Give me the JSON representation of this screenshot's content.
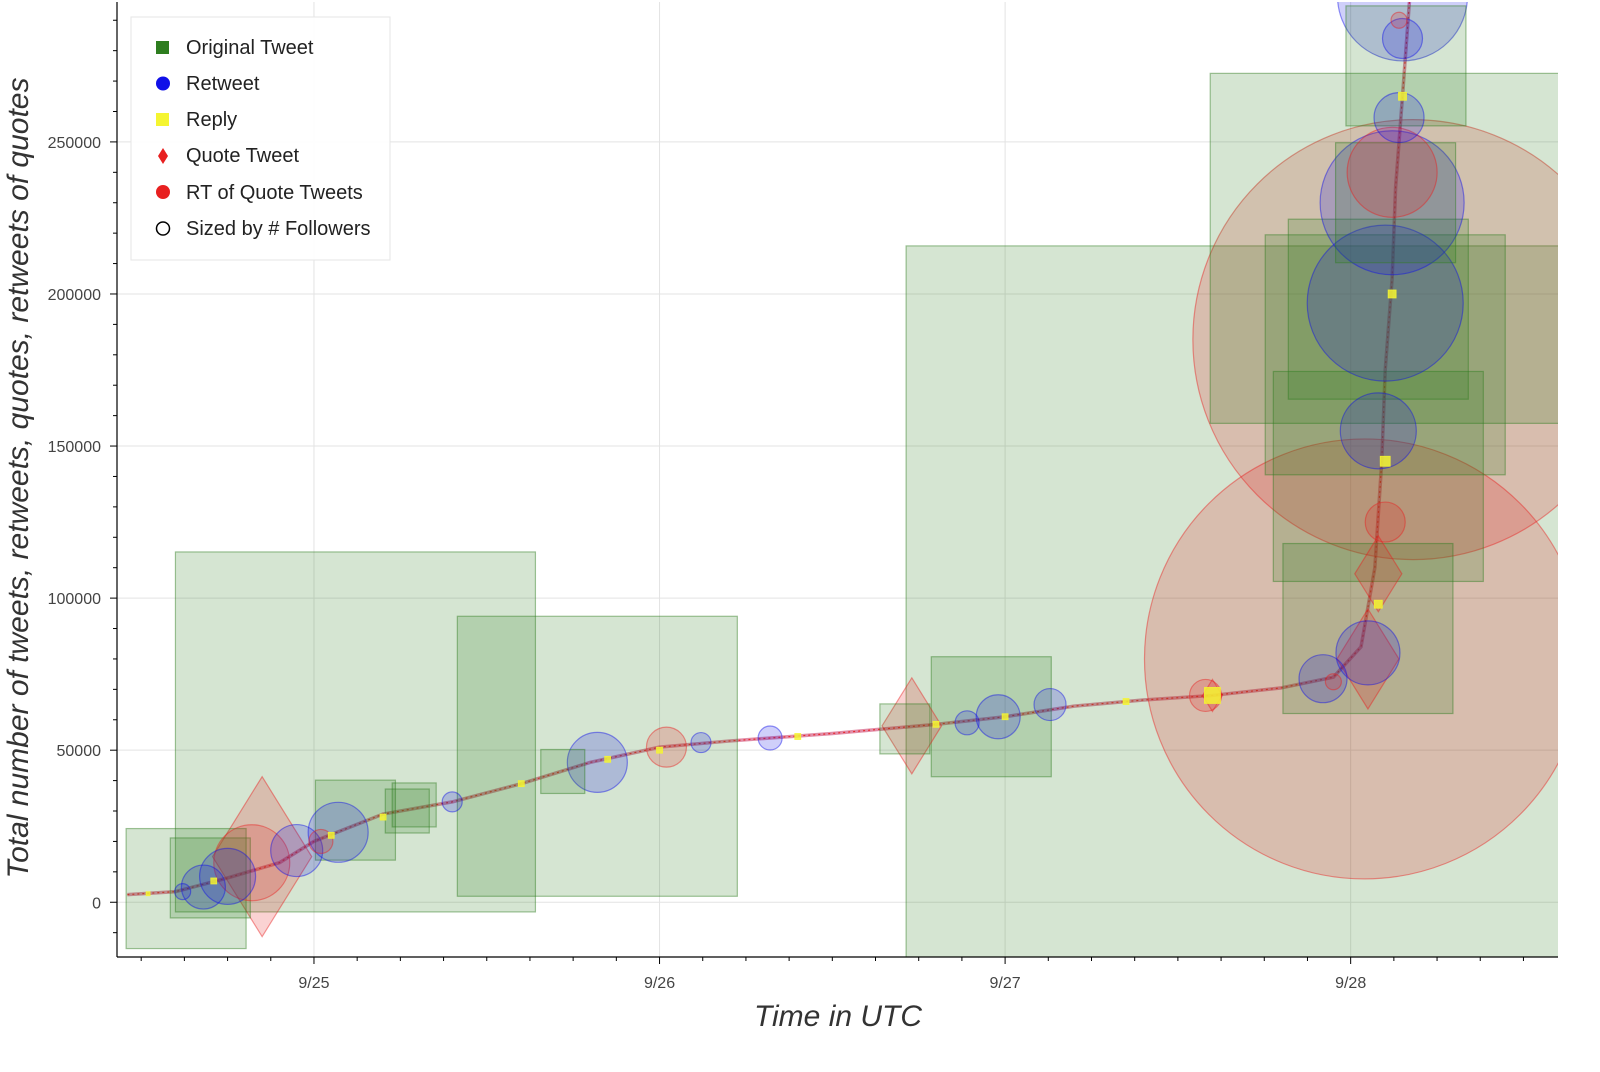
{
  "chart_data": {
    "type": "scatter",
    "title": "",
    "xlabel": "Time in UTC",
    "ylabel": "Total number of tweets, retweets, quotes, retweets of quotes",
    "x_unit": "days (9/25 00:00 UTC = 25)",
    "xlim": [
      24.43,
      28.6
    ],
    "ylim": [
      -18000,
      296000
    ],
    "x_ticks": [
      25,
      26,
      27,
      28
    ],
    "x_tick_labels": [
      "9/25",
      "9/26",
      "9/27",
      "9/28"
    ],
    "y_ticks": [
      0,
      50000,
      100000,
      150000,
      200000,
      250000
    ],
    "y_tick_labels": [
      "0",
      "50000",
      "100000",
      "150000",
      "200000",
      "250000"
    ],
    "grid": true,
    "legend_position": "top-left",
    "legend": [
      {
        "label": "Original Tweet",
        "shape": "square",
        "color": "#2e7d1f"
      },
      {
        "label": "Retweet",
        "shape": "circle",
        "color": "#1010e8"
      },
      {
        "label": "Reply",
        "shape": "square",
        "color": "#f5f531"
      },
      {
        "label": "Quote Tweet",
        "shape": "diamond",
        "color": "#e82020"
      },
      {
        "label": "RT of Quote Tweets",
        "shape": "circle",
        "color": "#e82020"
      },
      {
        "label": "Sized by # Followers",
        "shape": "circle-outline",
        "color": "#000000"
      }
    ],
    "trend": [
      [
        24.46,
        2500
      ],
      [
        24.6,
        3500
      ],
      [
        24.75,
        8000
      ],
      [
        24.9,
        13000
      ],
      [
        25.0,
        20000
      ],
      [
        25.2,
        29000
      ],
      [
        25.4,
        33000
      ],
      [
        25.6,
        39000
      ],
      [
        25.8,
        46000
      ],
      [
        26.0,
        51000
      ],
      [
        26.2,
        53000
      ],
      [
        26.5,
        55500
      ],
      [
        26.8,
        58500
      ],
      [
        27.0,
        61000
      ],
      [
        27.2,
        64500
      ],
      [
        27.4,
        66500
      ],
      [
        27.6,
        68000
      ],
      [
        27.8,
        70500
      ],
      [
        27.95,
        74000
      ],
      [
        28.03,
        84000
      ],
      [
        28.07,
        110000
      ],
      [
        28.09,
        145000
      ],
      [
        28.1,
        175000
      ],
      [
        28.12,
        205000
      ],
      [
        28.13,
        235000
      ],
      [
        28.15,
        265000
      ],
      [
        28.17,
        296000
      ]
    ],
    "series": [
      {
        "name": "Original Tweet",
        "marker": "square",
        "color": "#2e7d1f",
        "points": [
          [
            24.63,
            4500,
            60
          ],
          [
            24.7,
            8000,
            40
          ],
          [
            25.12,
            56000,
            180
          ],
          [
            25.12,
            27000,
            40
          ],
          [
            25.27,
            30000,
            22
          ],
          [
            25.29,
            32000,
            22
          ],
          [
            25.72,
            43000,
            22
          ],
          [
            25.82,
            48000,
            140
          ],
          [
            26.71,
            57000,
            25
          ],
          [
            26.96,
            61000,
            60
          ],
          [
            27.9,
            81000,
            410
          ],
          [
            28.05,
            90000,
            85
          ],
          [
            28.08,
            140000,
            105
          ],
          [
            28.1,
            180000,
            120
          ],
          [
            28.1,
            215000,
            175
          ],
          [
            28.13,
            230000,
            60
          ],
          [
            28.16,
            275000,
            60
          ],
          [
            28.08,
            195000,
            90
          ]
        ]
      },
      {
        "name": "Retweet",
        "marker": "circle",
        "color": "#1010e8",
        "points": [
          [
            24.62,
            3500,
            8
          ],
          [
            24.68,
            5000,
            22
          ],
          [
            24.75,
            8500,
            28
          ],
          [
            24.95,
            17000,
            26
          ],
          [
            25.07,
            23000,
            30
          ],
          [
            25.4,
            33000,
            10
          ],
          [
            25.82,
            46000,
            30
          ],
          [
            26.12,
            52500,
            10
          ],
          [
            26.32,
            54000,
            12
          ],
          [
            26.89,
            59000,
            12
          ],
          [
            26.98,
            61000,
            22
          ],
          [
            27.13,
            65000,
            16
          ],
          [
            27.92,
            73500,
            24
          ],
          [
            28.05,
            82000,
            32
          ],
          [
            28.08,
            155000,
            38
          ],
          [
            28.1,
            197000,
            78
          ],
          [
            28.12,
            230000,
            72
          ],
          [
            28.14,
            258000,
            25
          ],
          [
            28.15,
            284000,
            20
          ],
          [
            28.15,
            298000,
            65
          ]
        ]
      },
      {
        "name": "Reply",
        "marker": "square",
        "color": "#f5f531",
        "points": [
          [
            24.52,
            2800,
            2
          ],
          [
            24.71,
            7000,
            3
          ],
          [
            25.05,
            22000,
            3
          ],
          [
            25.2,
            28000,
            3
          ],
          [
            25.6,
            39000,
            3
          ],
          [
            25.85,
            47000,
            3
          ],
          [
            26.0,
            50000,
            3
          ],
          [
            26.4,
            54500,
            3
          ],
          [
            26.8,
            58500,
            3
          ],
          [
            27.0,
            61000,
            3
          ],
          [
            27.35,
            66000,
            3
          ],
          [
            27.6,
            68000,
            8
          ],
          [
            28.08,
            98000,
            4
          ],
          [
            28.1,
            145000,
            5
          ],
          [
            28.12,
            200000,
            4
          ],
          [
            28.15,
            265000,
            4
          ]
        ]
      },
      {
        "name": "Quote Tweet",
        "marker": "diamond",
        "color": "#e82020",
        "points": [
          [
            24.85,
            15000,
            80
          ],
          [
            26.73,
            58000,
            48
          ],
          [
            27.6,
            68000,
            16
          ],
          [
            28.05,
            80000,
            50
          ],
          [
            28.08,
            108000,
            38
          ]
        ]
      },
      {
        "name": "RT of Quote Tweets",
        "marker": "circle",
        "color": "#e82020",
        "points": [
          [
            24.82,
            13000,
            38
          ],
          [
            25.02,
            20000,
            12
          ],
          [
            26.02,
            51000,
            20
          ],
          [
            27.58,
            68000,
            16
          ],
          [
            27.95,
            72500,
            8
          ],
          [
            28.04,
            80000,
            220
          ],
          [
            28.18,
            185000,
            220
          ],
          [
            28.1,
            125000,
            20
          ],
          [
            28.12,
            240000,
            45
          ],
          [
            28.14,
            290000,
            8
          ]
        ]
      }
    ]
  }
}
